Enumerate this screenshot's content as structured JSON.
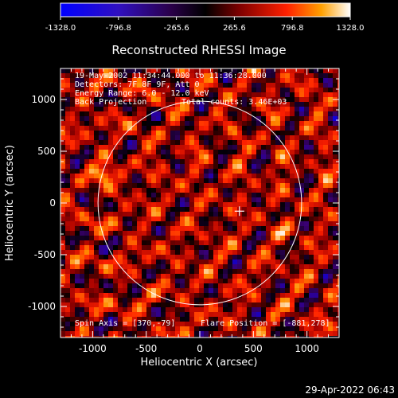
{
  "colorbar": {
    "ticks": [
      "-1328.0",
      "-796.8",
      "-265.6",
      "265.6",
      "796.8",
      "1328.0"
    ],
    "min": -1328.0,
    "max": 1328.0
  },
  "footer": {
    "timestamp": "29-Apr-2022 06:43"
  },
  "chart_data": {
    "type": "heatmap",
    "title": "Reconstructed RHESSI Image",
    "xlabel": "Heliocentric X (arcsec)",
    "ylabel": "Heliocentric Y (arcsec)",
    "xlim": [
      -1300,
      1300
    ],
    "ylim": [
      -1300,
      1300
    ],
    "xticks": [
      "-1000",
      "-500",
      "0",
      "500",
      "1000"
    ],
    "yticks": [
      "1000",
      "500",
      "0",
      "-500",
      "-1000"
    ],
    "xtick_values": [
      -1000,
      -500,
      0,
      500,
      1000
    ],
    "ytick_values": [
      1000,
      500,
      0,
      -500,
      -1000
    ],
    "annotations": {
      "time": "19-May-2002 11:34:44.000 to 11:36:28.000",
      "detectors": "Detectors: 7F 8F 9F, Att 0",
      "energy": "Energy Range: 6.0 - 12.0 keV",
      "method": "Back Projection",
      "counts": "Total counts: 3.46E+03",
      "spin_axis": "Spin Axis = [370,-79]",
      "flare_position": "Flare Position = [-881,278]"
    },
    "spin_axis_xy": [
      370,
      -79
    ],
    "flare_position_xy": [
      -881,
      278
    ],
    "solar_disk_radius": 950,
    "peak_value": 1328.0,
    "grid": false,
    "colormap": [
      "#0000ff",
      "#3a0070",
      "#000000",
      "#a00000",
      "#ff2000",
      "#ff9000",
      "#ffffff"
    ]
  }
}
